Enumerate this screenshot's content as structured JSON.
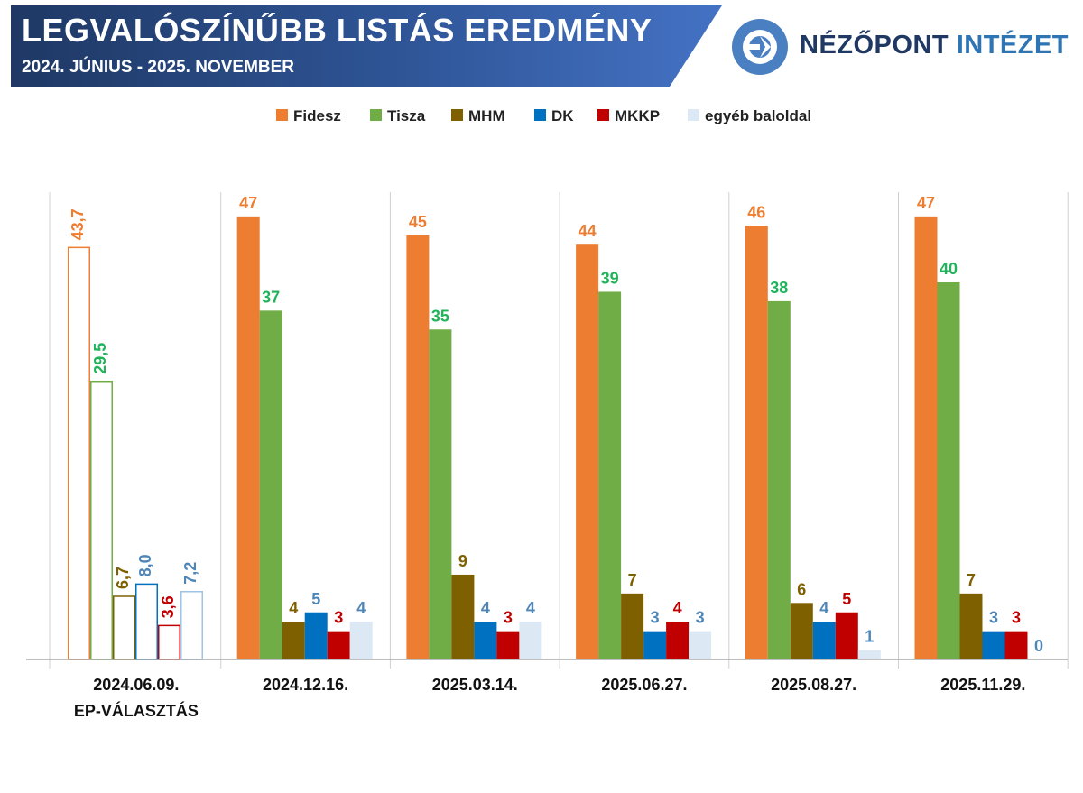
{
  "header": {
    "title": "LEGVALÓSZÍNŰBB LISTÁS EREDMÉNY",
    "subtitle": "2024. JÚNIUS - 2025. NOVEMBER",
    "banner_colors": [
      "#1f3864",
      "#4472c4"
    ]
  },
  "logo": {
    "text_primary": "NÉZŐPONT",
    "text_accent": "INTÉZET",
    "colors": {
      "ring": "#4a7fc1",
      "text": "#1f3864",
      "accent": "#2e75b6"
    }
  },
  "chart_data": {
    "type": "bar",
    "title": "",
    "xlabel": "",
    "ylabel": "",
    "ylim": [
      0,
      48
    ],
    "grid": false,
    "legend_position": "top-center",
    "categories": [
      "2024.06.09.|EP-VÁLASZTÁS",
      "2024.12.16.",
      "2025.03.14.",
      "2025.06.27.",
      "2025.08.27.",
      "2025.11.29."
    ],
    "outlined_categories": [
      0
    ],
    "series": [
      {
        "name": "Fidesz",
        "color": "#ed7d31",
        "label_color": "#ed7d31",
        "values": [
          43.7,
          47,
          45,
          44,
          46,
          47
        ],
        "labels": [
          "43,7",
          "47",
          "45",
          "44",
          "46",
          "47"
        ]
      },
      {
        "name": "Tisza",
        "color": "#70ad47",
        "label_color": "#1fb35a",
        "values": [
          29.5,
          37,
          35,
          39,
          38,
          40
        ],
        "labels": [
          "29,5",
          "37",
          "35",
          "39",
          "38",
          "40"
        ]
      },
      {
        "name": "MHM",
        "color": "#7f6000",
        "label_color": "#7f6000",
        "values": [
          6.7,
          4,
          9,
          7,
          6,
          7
        ],
        "labels": [
          "6,7",
          "4",
          "9",
          "7",
          "6",
          "7"
        ]
      },
      {
        "name": "DK",
        "color": "#0070c0",
        "label_color": "#4f86b8",
        "values": [
          8.0,
          5,
          4,
          3,
          4,
          3
        ],
        "labels": [
          "8,0",
          "5",
          "4",
          "3",
          "4",
          "3"
        ]
      },
      {
        "name": "MKKP",
        "color": "#c00000",
        "label_color": "#c00000",
        "values": [
          3.6,
          3,
          3,
          4,
          5,
          3
        ],
        "labels": [
          "3,6",
          "3",
          "3",
          "4",
          "5",
          "3"
        ]
      },
      {
        "name": "egyéb baloldal",
        "color": "#dde8f5",
        "label_color": "#4f86b8",
        "values": [
          7.2,
          4,
          4,
          3,
          1,
          0
        ],
        "labels": [
          "7,2",
          "4",
          "4",
          "3",
          "1",
          "0"
        ]
      }
    ]
  }
}
